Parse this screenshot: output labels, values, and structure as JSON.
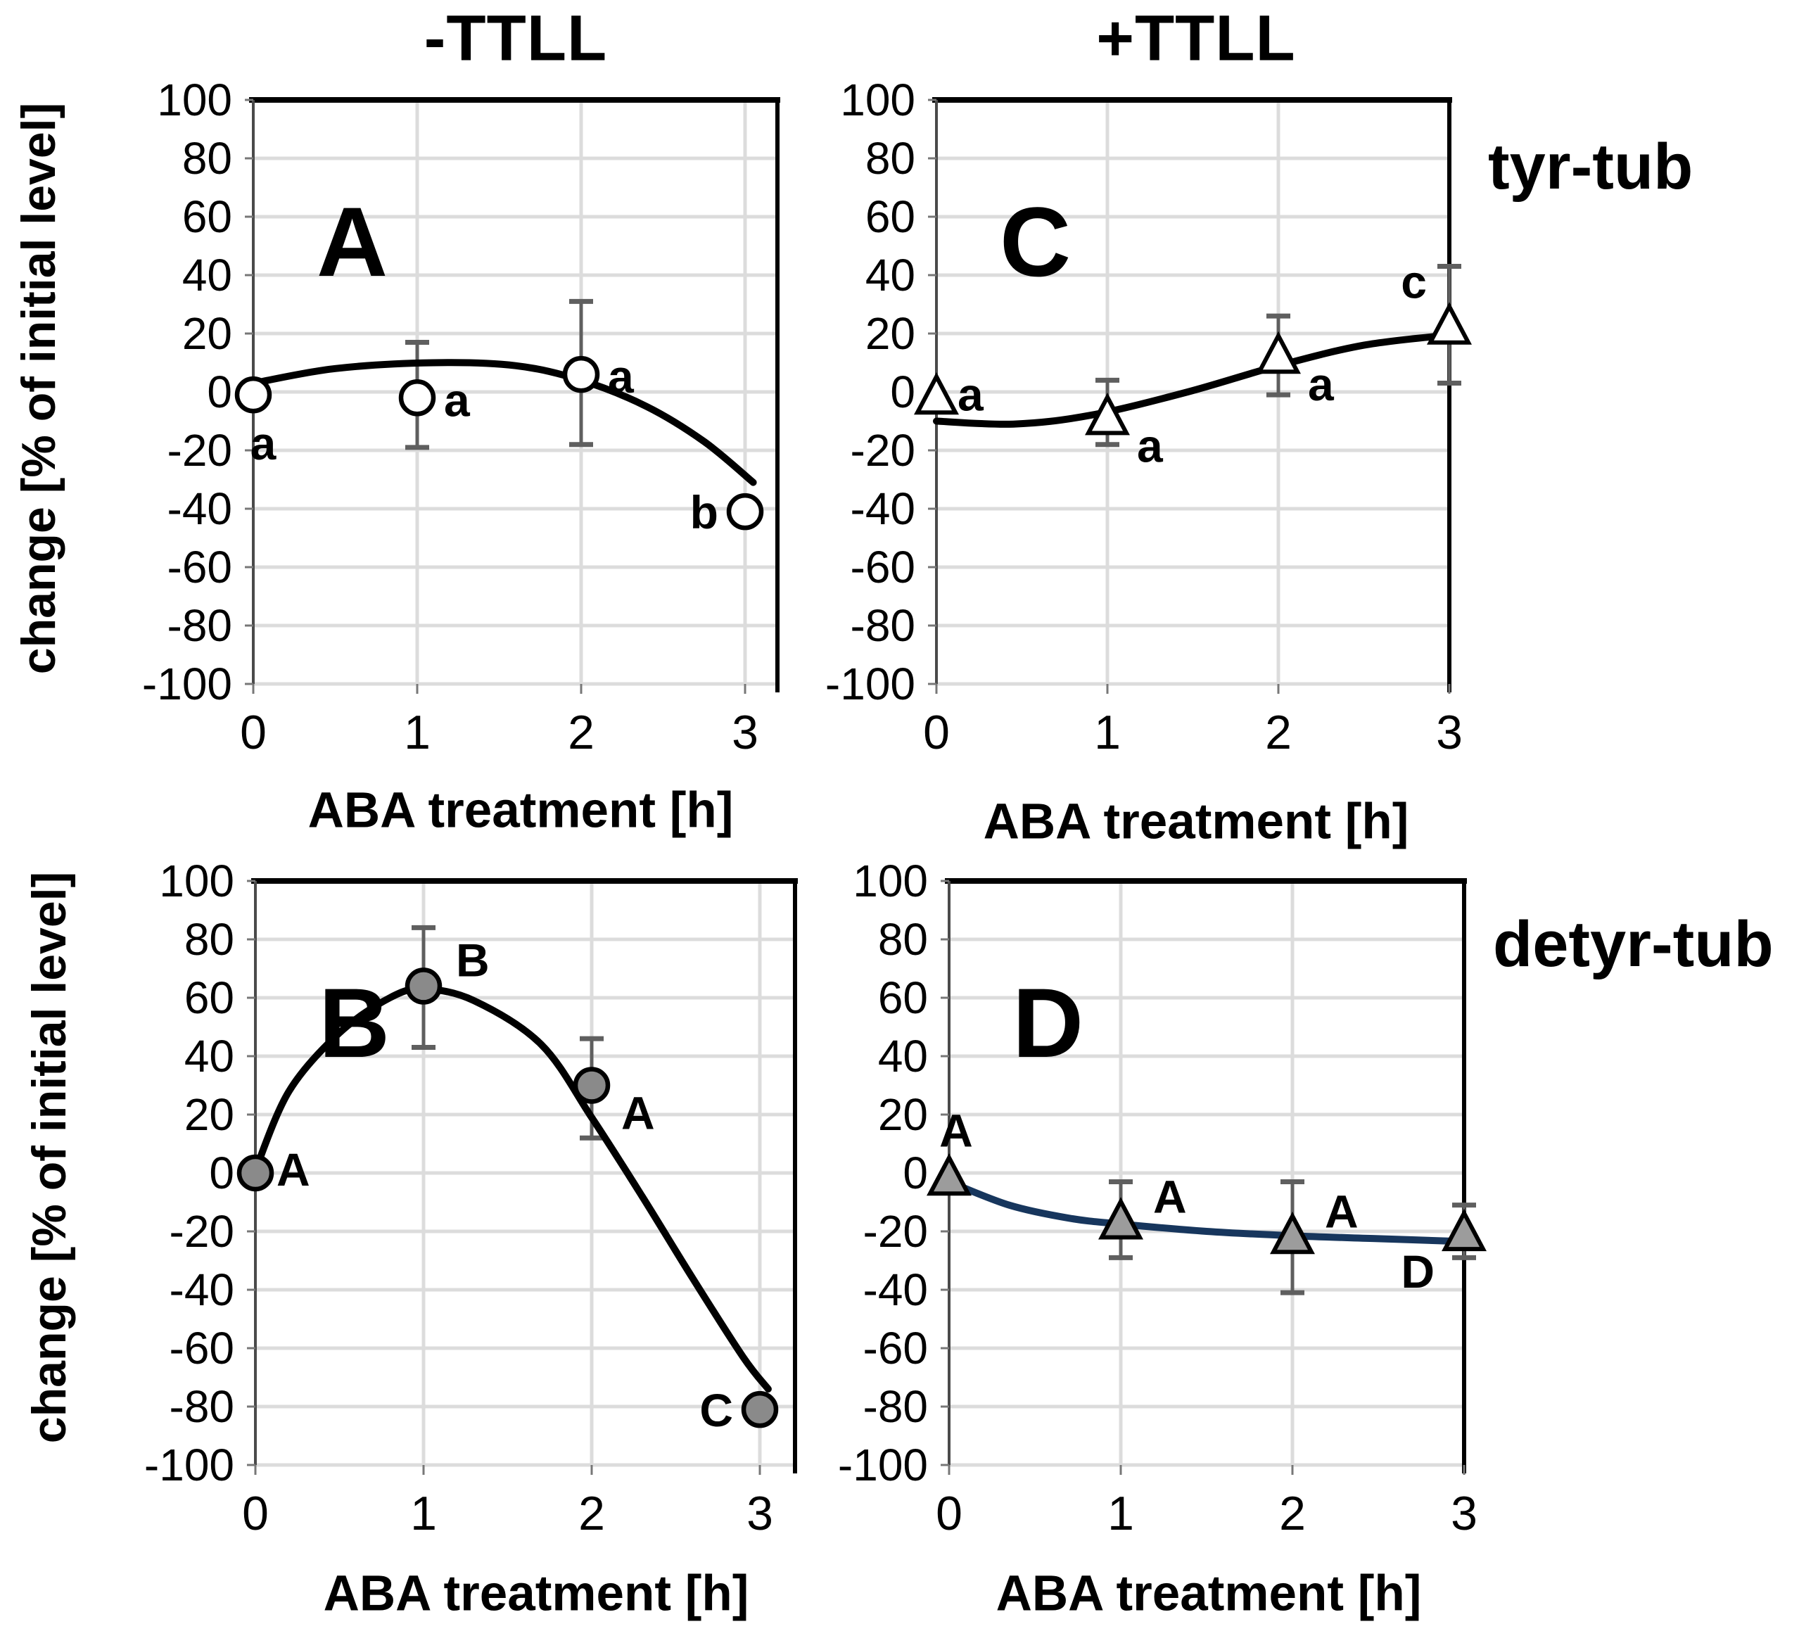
{
  "figure": {
    "columns": [
      {
        "title": "-TTLL"
      },
      {
        "title": "+TTLL"
      }
    ],
    "rows": [
      {
        "label": "tyr-tub"
      },
      {
        "label": "detyr-tub"
      }
    ],
    "y_axis_title": "change [% of initial level]",
    "x_axis_title": "ABA treatment [h]"
  },
  "colors": {
    "black": "#000000",
    "grid": "#dcdcdc",
    "error_bar": "#5f5f5f",
    "navy_curve": "#17365d",
    "gray_circle_fill": "#8a8a8a",
    "gray_triangle_fill": "#9c9c9c",
    "white_fill": "#ffffff",
    "axis_line": "#4a4a4a"
  },
  "chart_data": [
    {
      "panel_letter": "A",
      "condition": "-TTLL",
      "target": "tyr-tub",
      "type": "scatter",
      "marker": {
        "shape": "circle",
        "fill": "#ffffff"
      },
      "curve_color": "#000000",
      "xlabel": "ABA treatment [h]",
      "ylabel": "change [% of initial level]",
      "xticks": [
        0,
        1,
        2,
        3
      ],
      "yticks": [
        100,
        80,
        60,
        40,
        20,
        0,
        -20,
        -40,
        -60,
        -80,
        -100
      ],
      "ylim": [
        -100,
        100
      ],
      "x": [
        0,
        1,
        2,
        3
      ],
      "y": [
        -1,
        -2,
        6,
        -41
      ],
      "error_lo": [
        null,
        -19,
        -18,
        null
      ],
      "error_hi": [
        null,
        17,
        31,
        null
      ],
      "point_labels": [
        "a",
        "a",
        "a",
        "b"
      ],
      "label_placement": [
        "below",
        "right",
        "right",
        "left"
      ],
      "trend": [
        [
          0,
          3
        ],
        [
          0.5,
          8
        ],
        [
          1.1,
          10
        ],
        [
          1.6,
          9
        ],
        [
          2.0,
          4
        ],
        [
          2.4,
          -5
        ],
        [
          2.75,
          -17
        ],
        [
          3.05,
          -31
        ]
      ]
    },
    {
      "panel_letter": "B",
      "condition": "-TTLL",
      "target": "detyr-tub",
      "type": "scatter",
      "marker": {
        "shape": "circle",
        "fill": "#8a8a8a"
      },
      "curve_color": "#000000",
      "xlabel": "ABA treatment [h]",
      "ylabel": "change [% of initial level]",
      "xticks": [
        0,
        1,
        2,
        3
      ],
      "yticks": [
        100,
        80,
        60,
        40,
        20,
        0,
        -20,
        -40,
        -60,
        -80,
        -100
      ],
      "ylim": [
        -100,
        100
      ],
      "x": [
        0,
        1,
        2,
        3
      ],
      "y": [
        0,
        64,
        30,
        -81
      ],
      "error_lo": [
        null,
        43,
        12,
        null
      ],
      "error_hi": [
        null,
        84,
        46,
        null
      ],
      "point_labels": [
        "A",
        "B",
        "A",
        "C"
      ],
      "label_placement": [
        "right-tight",
        "up-right",
        "below-right",
        "left"
      ],
      "trend": [
        [
          0,
          1
        ],
        [
          0.2,
          28
        ],
        [
          0.5,
          48
        ],
        [
          0.8,
          60
        ],
        [
          1.0,
          63
        ],
        [
          1.3,
          59
        ],
        [
          1.7,
          44
        ],
        [
          2.0,
          19
        ],
        [
          2.3,
          -8
        ],
        [
          2.6,
          -36
        ],
        [
          2.9,
          -63
        ],
        [
          3.05,
          -74
        ]
      ]
    },
    {
      "panel_letter": "C",
      "condition": "+TTLL",
      "target": "tyr-tub",
      "type": "scatter",
      "marker": {
        "shape": "triangle",
        "fill": "#ffffff"
      },
      "curve_color": "#000000",
      "xlabel": "ABA treatment [h]",
      "ylabel": "change [% of initial level]",
      "xticks": [
        0,
        1,
        2,
        3
      ],
      "yticks": [
        100,
        80,
        60,
        40,
        20,
        0,
        -20,
        -40,
        -60,
        -80,
        -100
      ],
      "ylim": [
        -100,
        100
      ],
      "x": [
        0,
        1,
        2,
        3
      ],
      "y": [
        -2,
        -9,
        12,
        22
      ],
      "error_lo": [
        null,
        -18,
        -1,
        3
      ],
      "error_hi": [
        null,
        4,
        26,
        43
      ],
      "point_labels": [
        "a",
        "a",
        "a",
        "c"
      ],
      "label_placement": [
        "right-tight",
        "below-right",
        "below-right",
        "above-left"
      ],
      "trend": [
        [
          0,
          -10
        ],
        [
          0.45,
          -11
        ],
        [
          0.9,
          -8
        ],
        [
          1.47,
          0
        ],
        [
          2.0,
          9
        ],
        [
          2.5,
          16
        ],
        [
          3.0,
          19.5
        ]
      ]
    },
    {
      "panel_letter": "D",
      "condition": "+TTLL",
      "target": "detyr-tub",
      "type": "scatter",
      "marker": {
        "shape": "triangle",
        "fill": "#9c9c9c"
      },
      "curve_color": "#17365d",
      "xlabel": "ABA treatment [h]",
      "ylabel": "change [% of initial level]",
      "xticks": [
        0,
        1,
        2,
        3
      ],
      "yticks": [
        100,
        80,
        60,
        40,
        20,
        0,
        -20,
        -40,
        -60,
        -80,
        -100
      ],
      "ylim": [
        -100,
        100
      ],
      "x": [
        0,
        1,
        2,
        3
      ],
      "y": [
        -2,
        -17,
        -22,
        -21
      ],
      "error_lo": [
        null,
        -29,
        -41,
        -29
      ],
      "error_hi": [
        null,
        -3,
        -3,
        -11
      ],
      "point_labels": [
        "A",
        "A",
        "A",
        "D"
      ],
      "label_placement": [
        "above",
        "up-right",
        "up-right",
        "below-left"
      ],
      "trend": [
        [
          0,
          -3
        ],
        [
          0.35,
          -11
        ],
        [
          0.7,
          -15.5
        ],
        [
          1.0,
          -17.5
        ],
        [
          1.5,
          -20
        ],
        [
          2.0,
          -21.5
        ],
        [
          2.5,
          -22.5
        ],
        [
          3.0,
          -23.5
        ]
      ]
    }
  ]
}
